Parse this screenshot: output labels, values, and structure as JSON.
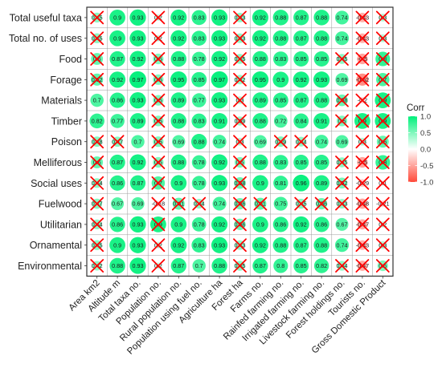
{
  "chart_data": {
    "type": "heatmap",
    "title": "",
    "xlabel": "",
    "ylabel": "",
    "rows": [
      "Total useful taxa",
      "Total no. of uses",
      "Food",
      "Forage",
      "Materials",
      "Timber",
      "Poison",
      "Melliferous",
      "Social uses",
      "Fuelwood",
      "Utilitarian",
      "Ornamental",
      "Environmental"
    ],
    "columns": [
      "Area km2",
      "Altitude m",
      "Total taxa no.",
      "Population no.",
      "Rural population no.",
      "Population using fuel no.",
      "Agriculture ha",
      "Forest ha",
      "Farms no.",
      "Rainfed farming no.",
      "Irrigated farming no.",
      "Livestock farming no.",
      "Forest holdings no.",
      "Tourists no.",
      "Gross Domestic Product"
    ],
    "values": [
      [
        0.45,
        0.9,
        0.93,
        0.2,
        0.92,
        0.83,
        0.93,
        0.43,
        0.92,
        0.88,
        0.87,
        0.88,
        0.74,
        -0.43,
        0.3
      ],
      [
        0.45,
        0.9,
        0.93,
        0.2,
        0.92,
        0.83,
        0.93,
        0.43,
        0.92,
        0.88,
        0.87,
        0.88,
        0.74,
        -0.43,
        0.3
      ],
      [
        0.6,
        0.87,
        0.92,
        0.5,
        0.88,
        0.78,
        0.92,
        0.45,
        0.88,
        0.83,
        0.85,
        0.85,
        0.45,
        -0.5,
        0.8
      ],
      [
        0.62,
        0.92,
        0.97,
        0.5,
        0.95,
        0.85,
        0.97,
        0.42,
        0.95,
        0.9,
        0.92,
        0.93,
        0.69,
        -0.62,
        0.7
      ],
      [
        0.7,
        0.86,
        0.93,
        0.5,
        0.89,
        0.77,
        0.93,
        0.3,
        0.89,
        0.85,
        0.87,
        0.88,
        0.58,
        -0.2,
        0.9
      ],
      [
        0.82,
        0.77,
        0.89,
        0.5,
        0.88,
        0.83,
        0.91,
        0.39,
        0.88,
        0.72,
        0.84,
        0.91,
        0.5,
        0.9,
        0.9
      ],
      [
        0.48,
        0.47,
        0.7,
        0.5,
        0.69,
        0.88,
        0.74,
        0.3,
        0.69,
        0.49,
        0.44,
        0.74,
        0.69,
        0.3,
        0.6
      ],
      [
        0.6,
        0.87,
        0.92,
        0.5,
        0.88,
        0.78,
        0.92,
        0.5,
        0.88,
        0.83,
        0.85,
        0.85,
        0.45,
        -0.5,
        0.8
      ],
      [
        0.44,
        0.86,
        0.87,
        0.7,
        0.9,
        0.78,
        0.93,
        0.58,
        0.9,
        0.81,
        0.96,
        0.89,
        0.52,
        -0.29,
        0.1
      ],
      [
        0.47,
        0.67,
        0.69,
        -0.18,
        0.61,
        0.44,
        0.74,
        0.56,
        0.61,
        0.75,
        0.45,
        0.56,
        0.43,
        -0.48,
        -0.21
      ],
      [
        0.44,
        0.86,
        0.93,
        0.9,
        0.9,
        0.78,
        0.92,
        0.56,
        0.9,
        0.86,
        0.92,
        0.86,
        0.67,
        -0.47,
        0.2
      ],
      [
        0.45,
        0.9,
        0.93,
        0.2,
        0.92,
        0.83,
        0.93,
        0.43,
        0.92,
        0.88,
        0.87,
        0.88,
        0.74,
        -0.43,
        0.3
      ],
      [
        0.42,
        0.88,
        0.93,
        0.2,
        0.87,
        0.7,
        0.88,
        0.45,
        0.87,
        0.8,
        0.85,
        0.82,
        0.44,
        -0.47,
        0.5
      ]
    ],
    "value_labels": [
      [
        "0.45",
        "0.9",
        "0.93",
        "0.2",
        "0.92",
        "0.83",
        "0.93",
        "0.43",
        "0.92",
        "0.88",
        "0.87",
        "0.88",
        "0.74",
        "-0.43",
        "0.3"
      ],
      [
        "0.45",
        "0.9",
        "0.93",
        "0.2",
        "0.92",
        "0.83",
        "0.93",
        "0.43",
        "0.92",
        "0.88",
        "0.87",
        "0.88",
        "0.74",
        "-0.43",
        "0.3"
      ],
      [
        "0.6",
        "0.87",
        "0.92",
        "0.5",
        "0.88",
        "0.78",
        "0.92",
        "0.45",
        "0.88",
        "0.83",
        "0.85",
        "0.85",
        "0.45",
        "-0.5",
        "0.8"
      ],
      [
        "0.62",
        "0.92",
        "0.97",
        "0.5",
        "0.95",
        "0.85",
        "0.97",
        "0.42",
        "0.95",
        "0.9",
        "0.92",
        "0.93",
        "0.69",
        "-0.62",
        "0.7"
      ],
      [
        "0.7",
        "0.86",
        "0.93",
        "0.5",
        "0.89",
        "0.77",
        "0.93",
        "0.3",
        "0.89",
        "0.85",
        "0.87",
        "0.88",
        "0.58",
        "-0.2",
        "0.9"
      ],
      [
        "0.82",
        "0.77",
        "0.89",
        "0.5",
        "0.88",
        "0.83",
        "0.91",
        "0.39",
        "0.88",
        "0.72",
        "0.84",
        "0.91",
        "0.5",
        "0.9",
        "0.9"
      ],
      [
        "0.48",
        "0.47",
        "0.7",
        "0.5",
        "0.69",
        "0.88",
        "0.74",
        "0.3",
        "0.69",
        "0.49",
        "0.44",
        "0.74",
        "0.69",
        "0.3",
        "0.6"
      ],
      [
        "0.6",
        "0.87",
        "0.92",
        "0.5",
        "0.88",
        "0.78",
        "0.92",
        "0.5",
        "0.88",
        "0.83",
        "0.85",
        "0.85",
        "0.45",
        "-0.5",
        "0.8"
      ],
      [
        "0.44",
        "0.86",
        "0.87",
        "0.7",
        "0.9",
        "0.78",
        "0.93",
        "0.58",
        "0.9",
        "0.81",
        "0.96",
        "0.89",
        "0.52",
        "-0.29",
        "0.1"
      ],
      [
        "0.47",
        "0.67",
        "0.69",
        "-0.18",
        "0.61",
        "0.44",
        "0.74",
        "0.56",
        "0.61",
        "0.75",
        "0.45",
        "0.56",
        "0.43",
        "-0.48",
        "-0.21"
      ],
      [
        "0.44",
        "0.86",
        "0.93",
        "0.9",
        "0.9",
        "0.78",
        "0.92",
        "0.56",
        "0.9",
        "0.86",
        "0.92",
        "0.86",
        "0.67",
        "-0.47",
        "0.2"
      ],
      [
        "0.45",
        "0.9",
        "0.93",
        "0.2",
        "0.92",
        "0.83",
        "0.93",
        "0.43",
        "0.92",
        "0.88",
        "0.87",
        "0.88",
        "0.74",
        "-0.43",
        "0.3"
      ],
      [
        "0.42",
        "0.88",
        "0.93",
        "0.2",
        "0.87",
        "0.7",
        "0.88",
        "0.45",
        "0.87",
        "0.8",
        "0.85",
        "0.82",
        "0.44",
        "-0.47",
        "0.5"
      ]
    ],
    "crossed": [
      [
        1,
        0,
        0,
        1,
        0,
        0,
        0,
        1,
        0,
        0,
        0,
        0,
        0,
        1,
        1
      ],
      [
        1,
        0,
        0,
        1,
        0,
        0,
        0,
        1,
        0,
        0,
        0,
        0,
        0,
        1,
        1
      ],
      [
        1,
        0,
        0,
        1,
        0,
        0,
        0,
        1,
        0,
        0,
        0,
        0,
        1,
        1,
        1
      ],
      [
        1,
        0,
        0,
        1,
        0,
        0,
        0,
        1,
        0,
        0,
        0,
        0,
        0,
        1,
        1
      ],
      [
        0,
        0,
        0,
        1,
        0,
        0,
        0,
        1,
        0,
        0,
        0,
        0,
        1,
        1,
        1
      ],
      [
        0,
        0,
        0,
        1,
        0,
        0,
        0,
        1,
        0,
        0,
        0,
        0,
        1,
        1,
        1
      ],
      [
        1,
        1,
        0,
        1,
        0,
        0,
        0,
        1,
        0,
        1,
        1,
        0,
        0,
        1,
        1
      ],
      [
        1,
        0,
        0,
        1,
        0,
        0,
        0,
        1,
        0,
        0,
        0,
        0,
        1,
        1,
        1
      ],
      [
        1,
        0,
        0,
        1,
        0,
        0,
        0,
        1,
        0,
        0,
        0,
        0,
        1,
        1,
        1
      ],
      [
        1,
        0,
        0,
        1,
        1,
        1,
        0,
        1,
        1,
        0,
        1,
        1,
        1,
        1,
        1
      ],
      [
        1,
        0,
        0,
        1,
        0,
        0,
        0,
        1,
        0,
        0,
        0,
        0,
        0,
        1,
        1
      ],
      [
        1,
        0,
        0,
        1,
        0,
        0,
        0,
        1,
        0,
        0,
        0,
        0,
        0,
        1,
        1
      ],
      [
        1,
        0,
        0,
        1,
        0,
        0,
        0,
        1,
        0,
        0,
        0,
        0,
        1,
        1,
        1
      ]
    ],
    "legend": {
      "title": "Corr",
      "ticks": [
        "1.0",
        "0.5",
        "0.0",
        "-0.5",
        "-1.0"
      ],
      "tick_values": [
        1.0,
        0.5,
        0.0,
        -0.5,
        -1.0
      ],
      "high_color": "#00F07A",
      "mid_color": "#FFFFFF",
      "low_color": "#FF4A3A",
      "placement": "right"
    },
    "range": [
      -1,
      1
    ],
    "grid": true,
    "mark_color": "#FF0000",
    "label_color": "#1a1a1a"
  }
}
